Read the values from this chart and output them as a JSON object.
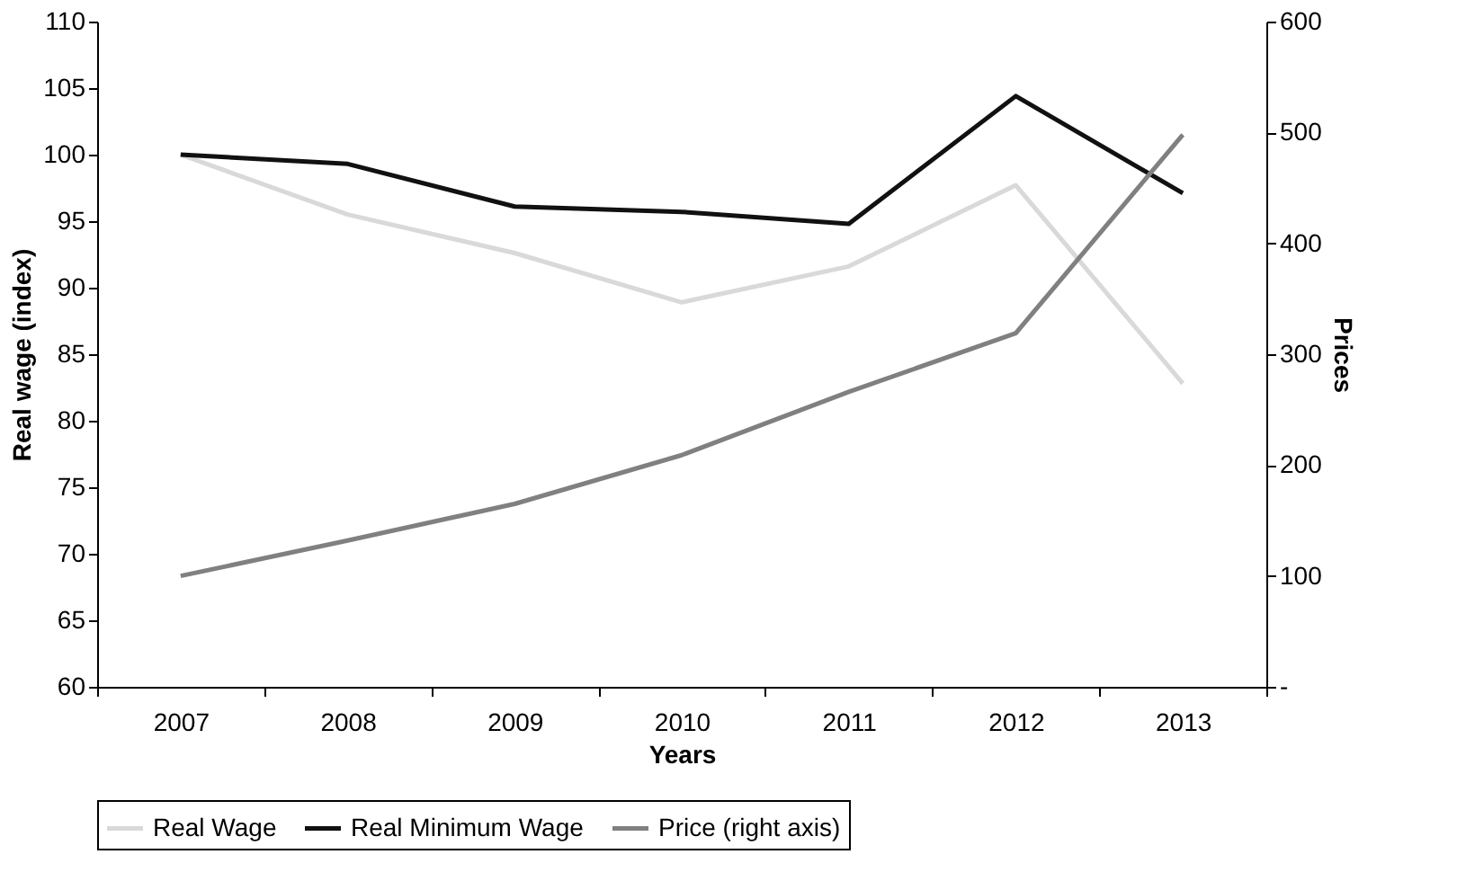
{
  "chart_data": {
    "type": "line",
    "categories": [
      "2007",
      "2008",
      "2009",
      "2010",
      "2011",
      "2012",
      "2013"
    ],
    "series": [
      {
        "name": "Real Wage",
        "color": "#d9d9d9",
        "values": [
          100,
          95.5,
          92.6,
          88.9,
          91.6,
          97.7,
          82.8
        ]
      },
      {
        "name": "Real Minimum Wage",
        "color": "#111111",
        "values": [
          100,
          99.3,
          96.1,
          95.7,
          94.8,
          104.4,
          97.1
        ]
      },
      {
        "name": "Price (right axis)",
        "color": "#808080",
        "axis": "y2",
        "values": [
          100,
          132,
          165,
          209,
          266,
          319,
          498
        ]
      }
    ],
    "xlabel": "Years",
    "ylabel": "Real wage (index)",
    "y2label": "Prices",
    "ylim": [
      60,
      110
    ],
    "yticks": [
      60,
      65,
      70,
      75,
      80,
      85,
      90,
      95,
      100,
      105,
      110
    ],
    "y2lim": [
      0,
      600
    ],
    "y2ticks": [
      {
        "value": 0,
        "label": "-"
      },
      100,
      200,
      300,
      400,
      500,
      600
    ],
    "grid": false,
    "legend": "bottom",
    "line_style": "solid",
    "marker": "none"
  }
}
